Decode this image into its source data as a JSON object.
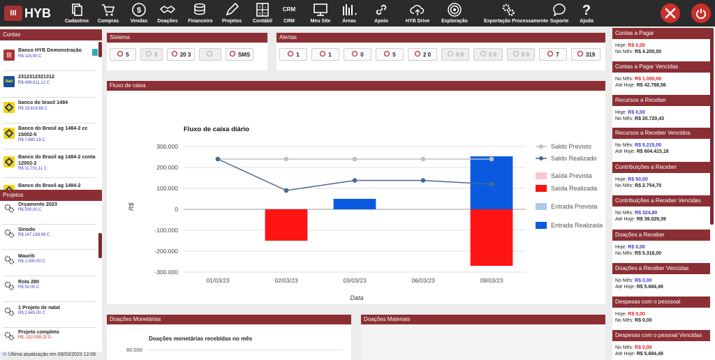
{
  "brand": {
    "logo_text": "HYB",
    "logo_badge": "III"
  },
  "nav": [
    {
      "label": "Cadastros",
      "icon": "copy-icon"
    },
    {
      "label": "Compras",
      "icon": "cart-icon"
    },
    {
      "label": "Vendas",
      "icon": "dollar-icon"
    },
    {
      "label": "Doações",
      "icon": "handshake-icon"
    },
    {
      "label": "Financeiro",
      "icon": "coins-icon"
    },
    {
      "label": "Projetos",
      "icon": "pencil-icon"
    },
    {
      "label": "Contábil",
      "icon": "calculator-icon"
    },
    {
      "label": "CRM",
      "icon": "crm-icon"
    },
    {
      "label": "Meu Site",
      "icon": "monitor-icon"
    },
    {
      "label": "Áreas",
      "icon": "areas-icon"
    },
    {
      "label": "Apoio",
      "icon": "link-icon"
    },
    {
      "label": "HYB Drive",
      "icon": "cloud-upload-icon"
    },
    {
      "label": "Exploração",
      "icon": "target-icon"
    },
    {
      "label": "Exportação Processamento",
      "icon": "gears-icon"
    },
    {
      "label": "Suporte",
      "icon": "chat-icon"
    },
    {
      "label": "Ajuda",
      "icon": "question-icon"
    }
  ],
  "nav_crm_text": "CRM",
  "contas": {
    "title": "Contas",
    "items": [
      {
        "name": "Banco HYB Demonstração",
        "balance": "R$ 118,00 C",
        "icon": "hyb-bank-icon"
      },
      {
        "name": "2312312321312",
        "balance": "R$ 499.611,12 C",
        "icon": "itau-bank-icon",
        "icon_text": "itaú"
      },
      {
        "name": "banco do brasil 1484",
        "balance": "R$ 19.619,68 C",
        "icon": "bb-bank-icon"
      },
      {
        "name": "Banco do Brasil ag 1484-2 cc 15002-5",
        "balance": "R$ 7.680,19 C",
        "icon": "bb-bank-icon"
      },
      {
        "name": "Banco do Brasil ag 1484-2 conta 12002-2",
        "balance": "R$ 11.701,11 C",
        "icon": "bb-bank-icon"
      },
      {
        "name": "Banco do Brasil ag 1484-2",
        "balance": "",
        "icon": "bb-bank-icon"
      }
    ]
  },
  "projetos": {
    "title": "Projetos",
    "items": [
      {
        "name": "Orçamento 2023",
        "balance": "R$ 500,00 C",
        "negative": false
      },
      {
        "name": "Sinodo",
        "balance": "R$ 147.169,99 C",
        "negative": false
      },
      {
        "name": "Mauriti",
        "balance": "R$ 1.000,00 C",
        "negative": false
      },
      {
        "name": "Rota 280",
        "balance": "R$ 50,00 C",
        "negative": false
      },
      {
        "name": "1 Projeto de natal",
        "balance": "R$ 2.645,00 C",
        "negative": false
      },
      {
        "name": "Projeto completo",
        "balance": "R$ -152.099,22 D",
        "negative": true
      }
    ]
  },
  "last_update": "Última atualização em 09/03/2023 12:06",
  "sistema": {
    "title": "Sistema",
    "boxes": [
      {
        "icon": "megaphone-icon",
        "value": "5",
        "dim": false
      },
      {
        "icon": "phone-icon",
        "value": "0",
        "dim": true
      },
      {
        "icon": "users-icon",
        "value": "20 3",
        "dim": false
      },
      {
        "icon": "signal-icon",
        "value": "",
        "dim": true
      },
      {
        "icon": "sms-icon",
        "value": "SMS",
        "dim": false
      }
    ]
  },
  "alertas": {
    "title": "Alertas",
    "boxes": [
      {
        "icon": "person-alert-icon",
        "value": "1",
        "dim": false
      },
      {
        "icon": "person-swap-icon",
        "value": "1",
        "dim": false
      },
      {
        "icon": "gift-icon",
        "value": "0",
        "dim": false
      },
      {
        "icon": "person-star-icon",
        "value": "5",
        "dim": false
      },
      {
        "icon": "invoice-icon",
        "value": "2 0",
        "dim": false
      },
      {
        "icon": "tools-icon",
        "value": "0 0",
        "dim": true
      },
      {
        "icon": "card-icon",
        "value": "0 0",
        "dim": true
      },
      {
        "icon": "truck-icon",
        "value": "0 0",
        "dim": true
      },
      {
        "icon": "factory-icon",
        "value": "7",
        "dim": false
      },
      {
        "icon": "cash-icon",
        "value": "319",
        "dim": false
      }
    ]
  },
  "fluxo": {
    "panel_title": "Fluxo de caixa",
    "chart_data": {
      "type": "bar",
      "title": "Fluxo de caixa diário",
      "xlabel": "Data",
      "ylabel": "R$",
      "categories": [
        "01/03/23",
        "02/03/23",
        "03/03/23",
        "06/03/23",
        "09/03/23"
      ],
      "ylim": [
        -300000,
        300000
      ],
      "yticks": [
        300000,
        200000,
        100000,
        0,
        -100000,
        -200000,
        -300000
      ],
      "ytick_labels": [
        "300.000",
        "200.000",
        "100.000",
        "0",
        "-100.000",
        "-200.000",
        "-300.000"
      ],
      "grid": true,
      "legend_position": "right",
      "series": [
        {
          "name": "Saldo Previsto",
          "kind": "line",
          "color": "#c0c0c0",
          "values": [
            240000,
            240000,
            240000,
            240000,
            240000
          ]
        },
        {
          "name": "Saldo Realizado",
          "kind": "line",
          "color": "#4a6a8a",
          "values": [
            240000,
            90000,
            138000,
            138000,
            120000
          ]
        },
        {
          "name": "Saída Prevista",
          "kind": "bar",
          "color": "#f9c8d0",
          "values": [
            0,
            0,
            0,
            0,
            0
          ]
        },
        {
          "name": "Saída Realizada",
          "kind": "bar",
          "color": "#ff1414",
          "values": [
            0,
            -150000,
            0,
            0,
            -270000
          ]
        },
        {
          "name": "Entrada Prevista",
          "kind": "bar",
          "color": "#b0c8ea",
          "values": [
            0,
            0,
            0,
            0,
            0
          ]
        },
        {
          "name": "Entrada Realizada",
          "kind": "bar",
          "color": "#0a5ae0",
          "values": [
            0,
            0,
            50000,
            0,
            253000
          ]
        }
      ]
    }
  },
  "donacoes_monetarias": {
    "title": "Doações Monetárias",
    "chart_title": "Doações monetárias recebidas no mês",
    "first_tick": "60.000"
  },
  "donacoes_materiais": {
    "title": "Doações Materiais"
  },
  "right": [
    {
      "title": "Contas a Pagar",
      "lines": [
        {
          "label": "Hoje:",
          "value": "R$ 0,00",
          "cls": "red"
        },
        {
          "label": "No Mês:",
          "value": "R$ 4.200,00",
          "cls": ""
        }
      ]
    },
    {
      "title": "Contas a Pagar Vencidas",
      "lines": [
        {
          "label": "No Mês:",
          "value": "R$ 1.000,00",
          "cls": "red"
        },
        {
          "label": "Até Hoje:",
          "value": "R$ 42.788,56",
          "cls": ""
        }
      ]
    },
    {
      "title": "Recursos a Receber",
      "lines": [
        {
          "label": "Hoje:",
          "value": "R$ 0,00",
          "cls": "blue"
        },
        {
          "label": "No Mês:",
          "value": "R$ 20.720,43",
          "cls": ""
        }
      ]
    },
    {
      "title": "Recursos a Receber Vencidos",
      "lines": [
        {
          "label": "No Mês:",
          "value": "R$ 5.215,00",
          "cls": "blue"
        },
        {
          "label": "Até Hoje:",
          "value": "R$ 604.415,18",
          "cls": ""
        }
      ]
    },
    {
      "title": "Contribuições a Receber",
      "lines": [
        {
          "label": "Hoje:",
          "value": "R$ 60,00",
          "cls": "blue"
        },
        {
          "label": "No Mês:",
          "value": "R$ 2.754,70",
          "cls": ""
        }
      ]
    },
    {
      "title": "Contribuições a Receber Vencidas",
      "lines": [
        {
          "label": "No Mês:",
          "value": "R$ 324,80",
          "cls": "blue"
        },
        {
          "label": "Até Hoje:",
          "value": "R$ 39.029,39",
          "cls": ""
        }
      ]
    },
    {
      "title": "Doações a Receber",
      "lines": [
        {
          "label": "Hoje:",
          "value": "R$ 0,00",
          "cls": "blue"
        },
        {
          "label": "No Mês:",
          "value": "R$ 5.316,00",
          "cls": ""
        }
      ]
    },
    {
      "title": "Doações a Receber Vencidas",
      "lines": [
        {
          "label": "No Mês:",
          "value": "R$ 0,00",
          "cls": "blue"
        },
        {
          "label": "Até Hoje:",
          "value": "R$ 5.684,49",
          "cls": ""
        }
      ]
    },
    {
      "title": "Despesas com o pesssoal",
      "lines": [
        {
          "label": "Hoje:",
          "value": "R$ 0,00",
          "cls": "red"
        },
        {
          "label": "No Mês:",
          "value": "R$ 0,00",
          "cls": ""
        }
      ]
    },
    {
      "title": "Despesas com o pessoal Vencidas",
      "lines": [
        {
          "label": "No Mês:",
          "value": "R$ 0,00",
          "cls": "red"
        },
        {
          "label": "Até Hoje:",
          "value": "R$ 5.684,49",
          "cls": ""
        }
      ]
    }
  ]
}
